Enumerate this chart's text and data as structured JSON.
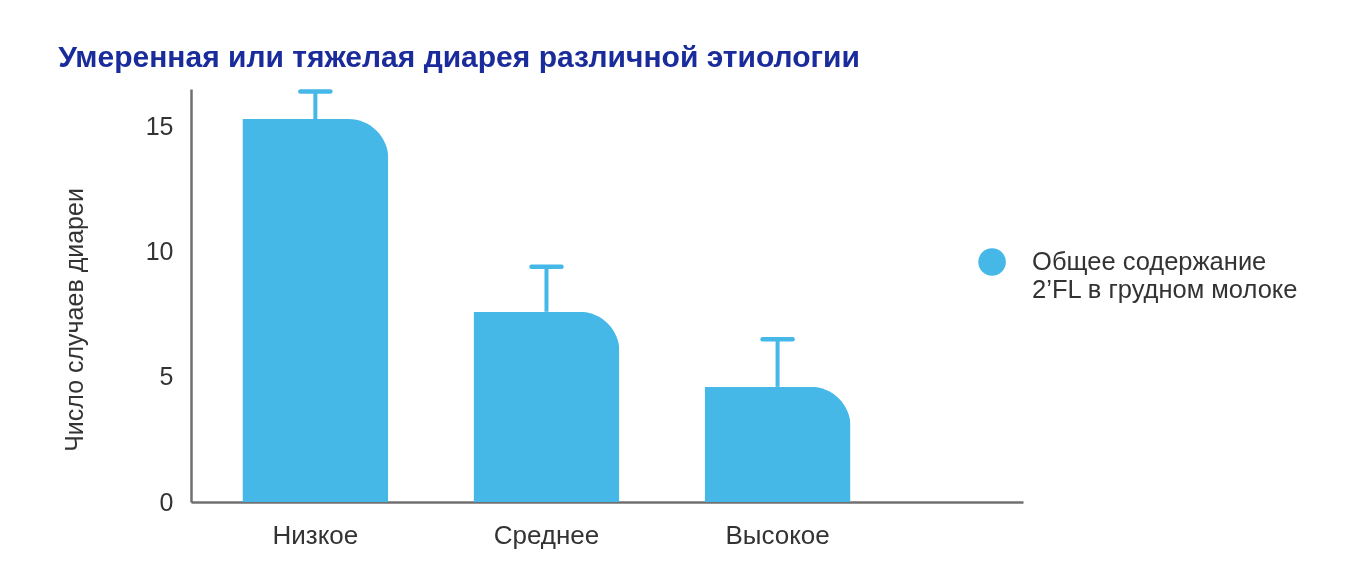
{
  "chart_data": {
    "type": "bar",
    "title": "Умеренная или тяжелая диарея различной этиологии",
    "ylabel": "Число случаев диареи",
    "categories": [
      "Низкое",
      "Среднее",
      "Высокое"
    ],
    "series": [
      {
        "name": "Общее содержание\n2’FL в грудном молоке",
        "color": "#45b8e8",
        "values": [
          15.3,
          7.6,
          4.6
        ],
        "errors": [
          [
            15.3,
            16.4
          ],
          [
            7.6,
            9.4
          ],
          [
            4.6,
            6.5
          ]
        ]
      }
    ],
    "ylim": [
      0,
      16.5
    ],
    "yticks": [
      0,
      5,
      10,
      15
    ],
    "legend": "right"
  }
}
